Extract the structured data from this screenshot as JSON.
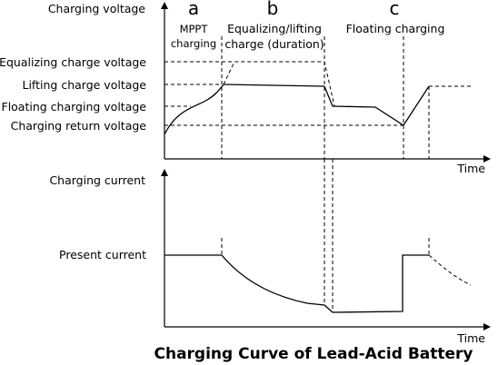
{
  "title": "Charging Curve of Lead-Acid Battery",
  "voltage_axis": {
    "label": "Charging voltage",
    "time_label": "Time",
    "levels": {
      "equalizing": "Equalizing charge voltage",
      "lifting": "Lifting charge voltage",
      "floating": "Floating charging voltage",
      "return": "Charging return voltage"
    }
  },
  "current_axis": {
    "label": "Charging current",
    "present": "Present current",
    "time_label": "Time"
  },
  "phases": [
    {
      "letter": "a",
      "line1": "MPPT",
      "line2": "charging"
    },
    {
      "letter": "b",
      "line1": "Equalizing/lifting",
      "line2": "charge (duration)"
    },
    {
      "letter": "c",
      "line1": "Floating charging",
      "line2": ""
    }
  ]
}
